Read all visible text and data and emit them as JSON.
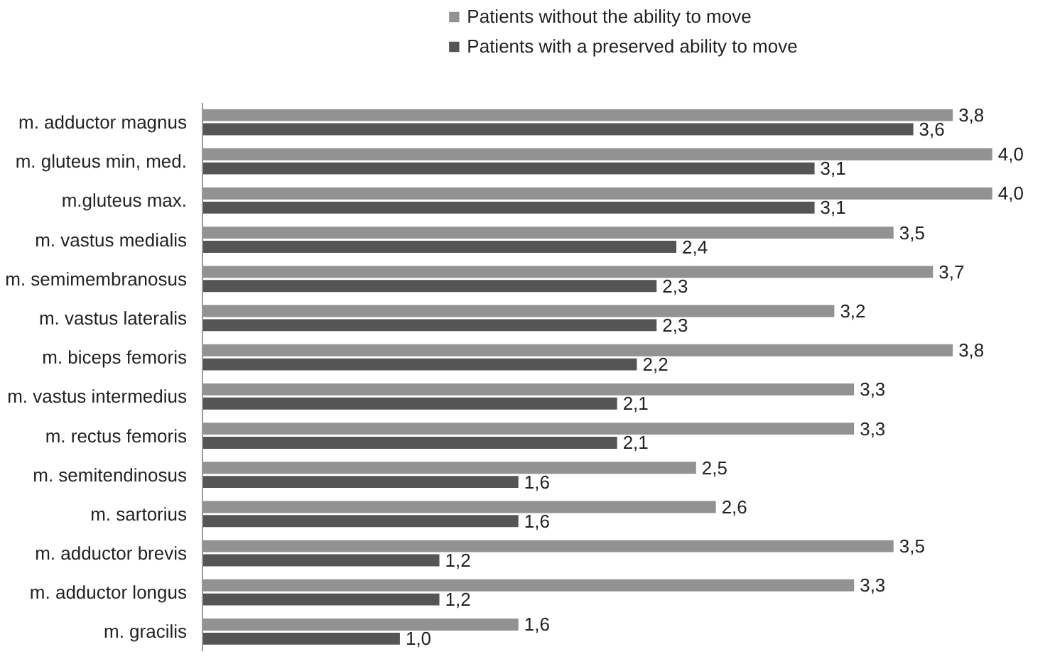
{
  "chart_data": {
    "type": "bar",
    "orientation": "horizontal",
    "legend": "top",
    "grid": false,
    "categories": [
      "m. adductor magnus",
      "m. gluteus min, med.",
      "m.gluteus max.",
      "m. vastus medialis",
      "m. semimembranosus",
      "m. vastus lateralis",
      "m. biceps femoris",
      "m. vastus intermedius",
      "m. rectus femoris",
      "m. semitendinosus",
      "m. sartorius",
      "m. adductor brevis",
      "m. adductor longus",
      "m. gracilis"
    ],
    "series": [
      {
        "name": "Patients without the ability to move",
        "color": "#929292",
        "values": [
          3.8,
          4.0,
          4.0,
          3.5,
          3.7,
          3.2,
          3.8,
          3.3,
          3.3,
          2.5,
          2.6,
          3.5,
          3.3,
          1.6
        ],
        "value_labels": [
          "3,8",
          "4,0",
          "4,0",
          "3,5",
          "3,7",
          "3,2",
          "3,8",
          "3,3",
          "3,3",
          "2,5",
          "2,6",
          "3,5",
          "3,3",
          "1,6"
        ]
      },
      {
        "name": "Patients with a preserved ability to move",
        "color": "#555555",
        "values": [
          3.6,
          3.1,
          3.1,
          2.4,
          2.3,
          2.3,
          2.2,
          2.1,
          2.1,
          1.6,
          1.6,
          1.2,
          1.2,
          1.0
        ],
        "value_labels": [
          "3,6",
          "3,1",
          "3,1",
          "2,4",
          "2,3",
          "2,3",
          "2,2",
          "2,1",
          "2,1",
          "1,6",
          "1,6",
          "1,2",
          "1,2",
          "1,0"
        ]
      }
    ]
  }
}
